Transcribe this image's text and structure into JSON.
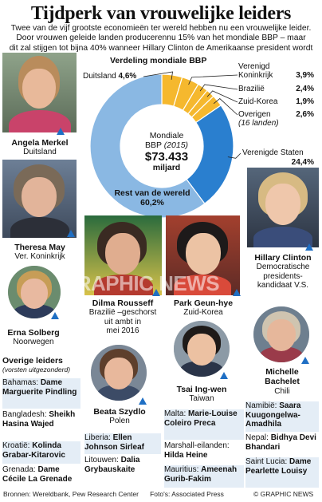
{
  "title": "Tijdperk van vrouwelijke leiders",
  "subtitle_lines": [
    "Twee van de vijf grootste economieën ter wereld hebben nu een vrouwelijke leider.",
    "Door vrouwen geleide landen producerennu 15% van het mondiale BBP – maar",
    "dit zal stijgen tot bijna 40% wanneer Hillary Clinton de Amerikaanse president wordt"
  ],
  "chart_data": {
    "type": "pie",
    "title": "Verdeling mondiale BBP",
    "center_label": "Mondiale",
    "center_label2": "BBP",
    "center_year": "(2015)",
    "center_value": "$73.433",
    "center_unit": "miljard",
    "slices": [
      {
        "name": "Duitsland",
        "value": 4.6,
        "value_label": "4,6%",
        "color": "#f5b82e"
      },
      {
        "name": "Verenigd Koninkrijk",
        "value": 3.9,
        "value_label": "3,9%",
        "color": "#f5b82e"
      },
      {
        "name": "Brazilië",
        "value": 2.4,
        "value_label": "2,4%",
        "color": "#f5b82e"
      },
      {
        "name": "Zuid-Korea",
        "value": 1.9,
        "value_label": "1,9%",
        "color": "#f5b82e"
      },
      {
        "name": "Overigen",
        "note": "(16 landen)",
        "value": 2.6,
        "value_label": "2,6%",
        "color": "#f5b82e"
      },
      {
        "name": "Verenigde Staten",
        "value": 24.4,
        "value_label": "24,4%",
        "color": "#2a7fcf"
      },
      {
        "name": "Rest van de wereld",
        "value": 60.2,
        "value_label": "60,2%",
        "color": "#8ab8e3"
      }
    ]
  },
  "leaders": {
    "merkel": {
      "name": "Angela Merkel",
      "country": "Duitsland"
    },
    "may": {
      "name": "Theresa May",
      "country": "Ver. Koninkrijk"
    },
    "solberg": {
      "name": "Erna Solberg",
      "country": "Noorwegen"
    },
    "rousseff": {
      "name": "Dilma Rousseff",
      "desc1": "Brazilië –geschorst",
      "desc2": "uit ambt in",
      "desc3": "mei 2016"
    },
    "park": {
      "name": "Park Geun-hye",
      "country": "Zuid-Korea"
    },
    "clinton": {
      "name": "Hillary Clinton",
      "desc1": "Democratische",
      "desc2": "presidents-",
      "desc3": "kandidaat V.S."
    },
    "bachelet": {
      "name": "Michelle",
      "name2": "Bachelet",
      "country": "Chili"
    },
    "szydlo": {
      "name": "Beata Szydlo",
      "country": "Polen"
    },
    "tsai": {
      "name": "Tsai Ing-wen",
      "country": "Taiwan"
    }
  },
  "others": {
    "heading": "Overige leiders",
    "subheading": "(vorsten uitgezonderd)",
    "items": [
      {
        "country": "Bahamas:",
        "name": "Dame Marguerite Pindling"
      },
      {
        "country": "Bangladesh:",
        "name": "Sheikh Hasina Wajed"
      },
      {
        "country": "Kroatië:",
        "name": "Kolinda Grabar-Kitarovic"
      },
      {
        "country": "Grenada:",
        "name": "Dame Cécile La Grenade"
      },
      {
        "country": "Liberia:",
        "name": "Ellen Johnson Sirleaf"
      },
      {
        "country": "Litouwen:",
        "name": "Dalia Grybauskaite"
      },
      {
        "country": "Malta:",
        "name": "Marie-Louise Coleiro Preca"
      },
      {
        "country": "Marshall-eilanden:",
        "name": "Hilda Heine"
      },
      {
        "country": "Mauritius:",
        "name": "Ameenah Gurib-Fakim"
      },
      {
        "country": "Namibië:",
        "name": "Saara Kuugongelwa-Amadhila"
      },
      {
        "country": "Nepal:",
        "name": "Bidhya Devi Bhandari"
      },
      {
        "country": "Saint Lucia:",
        "name": "Dame Pearlette Louisy"
      }
    ]
  },
  "footer": {
    "sources": "Bronnen: Wereldbank, Pew Research Center",
    "photos": "Foto's: Associated Press",
    "credit": "© GRAPHIC NEWS"
  },
  "watermark": "GRAPHIC NEWS"
}
